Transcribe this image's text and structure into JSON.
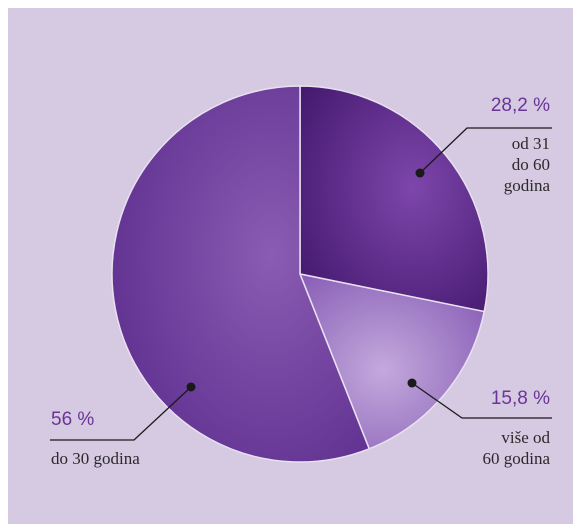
{
  "chart_data": {
    "type": "pie",
    "slices": [
      {
        "value": 28.2,
        "percent_label": "28,2 %",
        "label_lines": [
          "od 31",
          "do 60",
          "godina"
        ],
        "color": "#5a2a86"
      },
      {
        "value": 15.8,
        "percent_label": "15,8 %",
        "label_lines": [
          "više od",
          "60 godina"
        ],
        "color": "#9c79c2"
      },
      {
        "value": 56,
        "percent_label": "56 %",
        "label_lines": [
          "do 30 godina"
        ],
        "color": "#6f3f9d"
      }
    ],
    "start_angle_deg": 0,
    "direction": "clockwise",
    "background_color": "#d6c9e2"
  }
}
